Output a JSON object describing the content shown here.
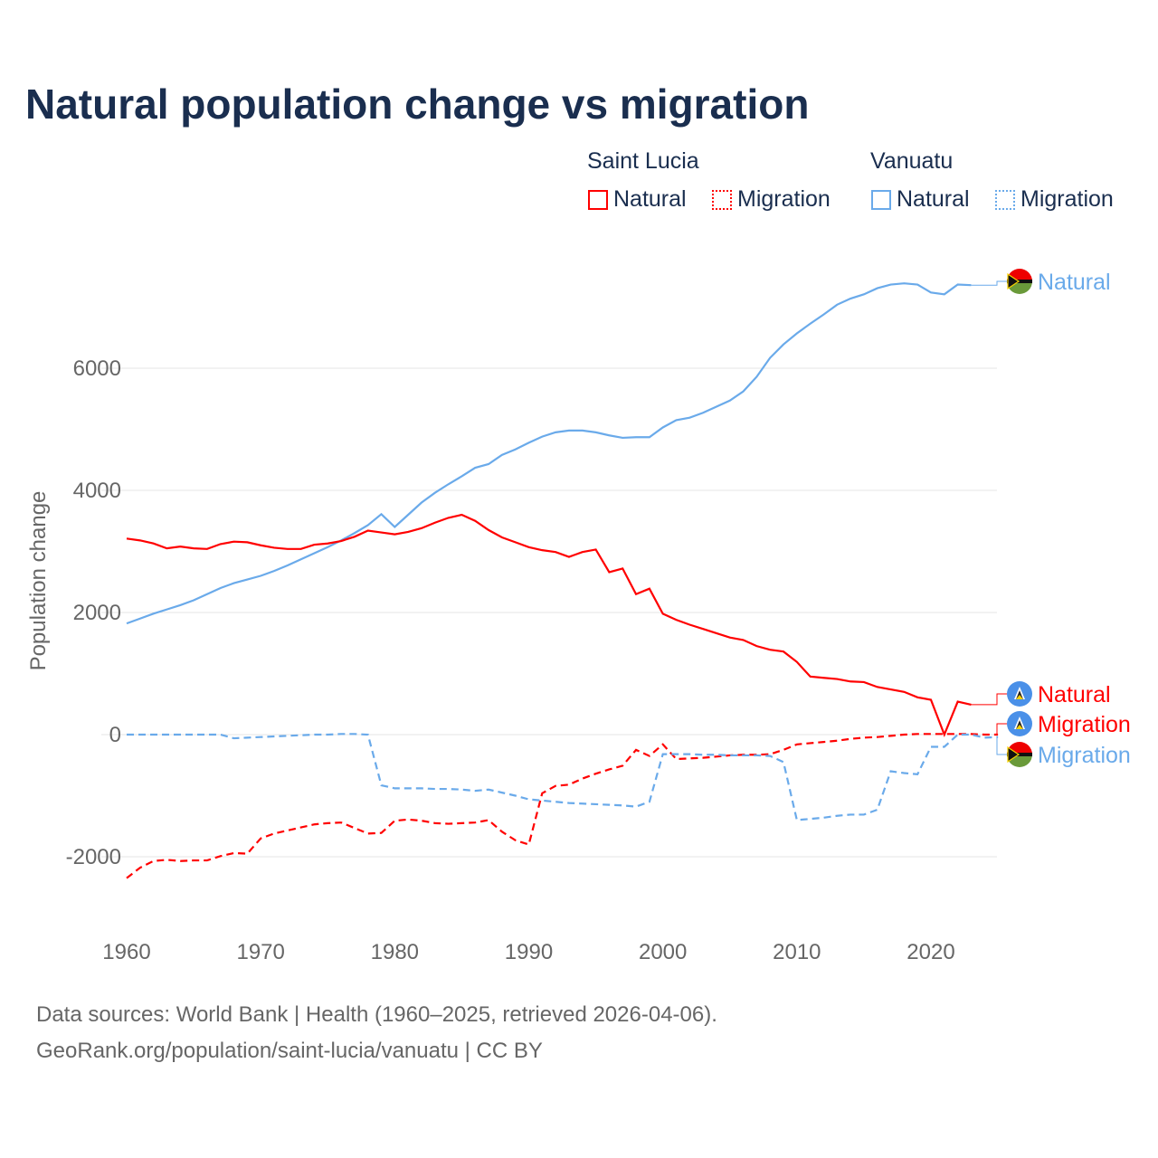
{
  "title": "Natural population change vs migration",
  "legend": {
    "groups": [
      {
        "name": "Saint Lucia",
        "items": [
          "Natural",
          "Migration"
        ]
      },
      {
        "name": "Vanuatu",
        "items": [
          "Natural",
          "Migration"
        ]
      }
    ]
  },
  "footer": {
    "line1": "Data sources: World Bank | Health (1960–2025, retrieved 2026-04-06).",
    "line2": "GeoRank.org/population/saint-lucia/vanuatu | CC BY"
  },
  "chart_data": {
    "type": "line",
    "title": "Natural population change vs migration",
    "xlabel": "",
    "ylabel": "Population change",
    "xlim": [
      1960,
      2025
    ],
    "ylim": [
      -3000,
      8000
    ],
    "xticks": [
      1960,
      1970,
      1980,
      1990,
      2000,
      2010,
      2020
    ],
    "yticks": [
      -2000,
      0,
      2000,
      4000,
      6000
    ],
    "grid": true,
    "legend_position": "top-right",
    "colors": {
      "saint_lucia": "#ff0000",
      "vanuatu": "#6aaaea"
    },
    "series": [
      {
        "name": "Vanuatu Natural",
        "country": "Vanuatu",
        "kind": "Natural",
        "color": "#6aaaea",
        "dash": false,
        "x_start": 1960,
        "values": [
          1820,
          1900,
          1980,
          2050,
          2120,
          2200,
          2300,
          2400,
          2480,
          2540,
          2600,
          2680,
          2770,
          2870,
          2970,
          3070,
          3180,
          3300,
          3430,
          3610,
          3400,
          3600,
          3800,
          3960,
          4100,
          4230,
          4370,
          4430,
          4580,
          4670,
          4780,
          4880,
          4950,
          4980,
          4980,
          4950,
          4900,
          4860,
          4870,
          4870,
          5030,
          5150,
          5190,
          5270,
          5370,
          5470,
          5620,
          5860,
          6170,
          6390,
          6570,
          6730,
          6880,
          7040,
          7140,
          7210,
          7310,
          7370,
          7390,
          7370,
          7240,
          7210,
          7370,
          7360
        ]
      },
      {
        "name": "Saint Lucia Natural",
        "country": "Saint Lucia",
        "kind": "Natural",
        "color": "#ff0000",
        "dash": false,
        "x_start": 1960,
        "values": [
          3210,
          3180,
          3130,
          3050,
          3080,
          3050,
          3040,
          3120,
          3160,
          3150,
          3100,
          3060,
          3040,
          3040,
          3110,
          3130,
          3170,
          3240,
          3340,
          3310,
          3280,
          3320,
          3380,
          3470,
          3550,
          3600,
          3500,
          3350,
          3230,
          3150,
          3070,
          3020,
          2990,
          2910,
          2990,
          3030,
          2660,
          2720,
          2300,
          2390,
          1980,
          1880,
          1800,
          1730,
          1660,
          1590,
          1550,
          1450,
          1390,
          1360,
          1190,
          950,
          930,
          910,
          870,
          860,
          780,
          740,
          700,
          610,
          570,
          0,
          540,
          490
        ]
      },
      {
        "name": "Saint Lucia Migration",
        "country": "Saint Lucia",
        "kind": "Migration",
        "color": "#ff0000",
        "dash": true,
        "x_start": 1960,
        "values": [
          -2350,
          -2180,
          -2070,
          -2050,
          -2070,
          -2060,
          -2060,
          -1990,
          -1940,
          -1950,
          -1700,
          -1620,
          -1570,
          -1520,
          -1470,
          -1450,
          -1440,
          -1530,
          -1620,
          -1610,
          -1410,
          -1390,
          -1410,
          -1450,
          -1460,
          -1450,
          -1440,
          -1400,
          -1590,
          -1730,
          -1800,
          -960,
          -840,
          -820,
          -720,
          -640,
          -570,
          -510,
          -250,
          -350,
          -160,
          -400,
          -390,
          -380,
          -360,
          -340,
          -330,
          -330,
          -320,
          -250,
          -160,
          -140,
          -120,
          -100,
          -70,
          -50,
          -40,
          -20,
          0,
          10,
          10,
          10,
          10,
          10,
          0,
          0
        ]
      },
      {
        "name": "Vanuatu Migration",
        "country": "Vanuatu",
        "kind": "Migration",
        "color": "#6aaaea",
        "dash": true,
        "x_start": 1960,
        "values": [
          0,
          0,
          0,
          0,
          0,
          0,
          0,
          0,
          -60,
          -50,
          -40,
          -30,
          -20,
          -10,
          0,
          0,
          10,
          10,
          0,
          -830,
          -880,
          -880,
          -880,
          -890,
          -890,
          -900,
          -920,
          -900,
          -950,
          -1000,
          -1060,
          -1080,
          -1100,
          -1120,
          -1130,
          -1140,
          -1150,
          -1160,
          -1180,
          -1100,
          -320,
          -320,
          -320,
          -330,
          -330,
          -340,
          -340,
          -340,
          -350,
          -450,
          -1400,
          -1380,
          -1360,
          -1330,
          -1310,
          -1310,
          -1230,
          -600,
          -630,
          -650,
          -200,
          -200,
          0,
          0,
          -50,
          -40
        ]
      }
    ],
    "end_labels": [
      "Natural",
      "Natural",
      "Migration",
      "Migration"
    ]
  }
}
